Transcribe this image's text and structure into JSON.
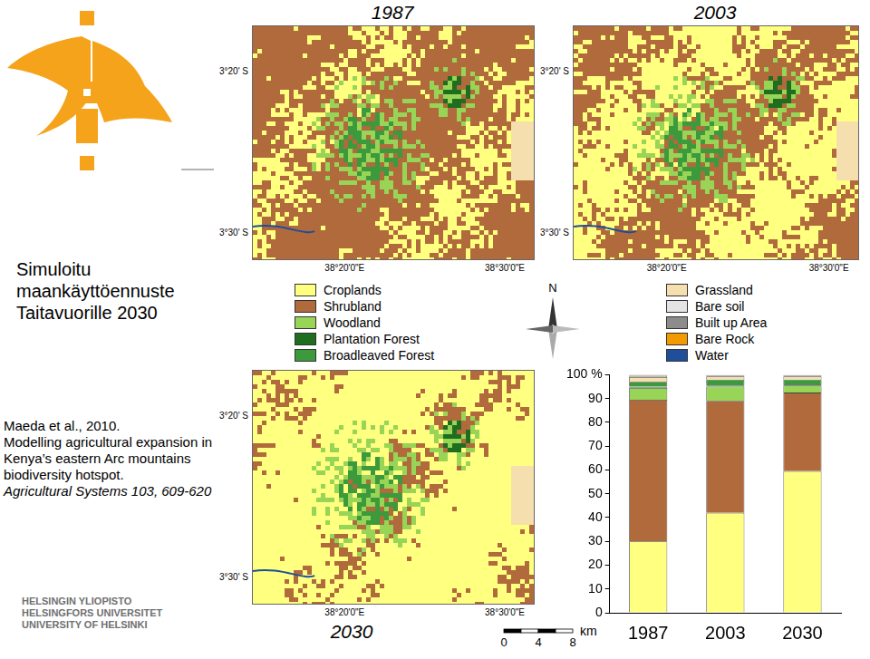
{
  "title": "Simuloitu maankäyttöennuste Taitavuorille 2030",
  "citation": {
    "authors": "Maeda et al., 2010.",
    "article": "Modelling agricultural expansion in Kenya’s eastern Arc mountains biodiversity hotspot.",
    "journal": "Agricultural Systems 103, 609-620"
  },
  "university": [
    "HELSINGIN YLIOPISTO",
    "HELSINGFORS UNIVERSITET",
    "UNIVERSITY OF HELSINKI"
  ],
  "maps": [
    {
      "year": "1987",
      "lat_labels": [
        "3°20' S",
        "3°30' S"
      ],
      "lon_labels": [
        "38°20'0\"E",
        "38°30'0\"E"
      ]
    },
    {
      "year": "2003",
      "lat_labels": [
        "3°20' S",
        "3°30' S"
      ],
      "lon_labels": [
        "38°20'0\"E",
        "38°30'0\"E"
      ]
    },
    {
      "year": "2030",
      "lat_labels": [
        "3°20' S",
        "3°30' S"
      ],
      "lon_labels": [
        "38°20'0\"E",
        "38°30'0\"E"
      ]
    }
  ],
  "compass": "N",
  "scale_bar": {
    "unit": "km",
    "ticks": [
      0,
      4,
      8
    ]
  },
  "chart_data": {
    "type": "bar",
    "stacked": true,
    "grid": false,
    "categories": [
      "1987",
      "2003",
      "2030"
    ],
    "series": [
      {
        "name": "Croplands",
        "color": "#ffff80",
        "values": [
          30,
          42,
          59.5
        ]
      },
      {
        "name": "Shrubland",
        "color": "#b06a3c",
        "values": [
          59.5,
          47,
          33
        ]
      },
      {
        "name": "Woodland",
        "color": "#98d455",
        "values": [
          5,
          6,
          3
        ]
      },
      {
        "name": "Plantation Forest",
        "color": "#1f6e1f",
        "values": [
          0.5,
          0.5,
          0.5
        ]
      },
      {
        "name": "Broadleaved Forest",
        "color": "#3c9a3c",
        "values": [
          2,
          2.5,
          2
        ]
      },
      {
        "name": "Grassland",
        "color": "#f6dfae",
        "values": [
          2,
          1.3,
          1.3
        ]
      },
      {
        "name": "Bare soil",
        "color": "#e4e4e4",
        "values": [
          0.3,
          0.2,
          0.2
        ]
      },
      {
        "name": "Built up Area",
        "color": "#8c8c8c",
        "values": [
          0.3,
          0.3,
          0.3
        ]
      },
      {
        "name": "Bare Rock",
        "color": "#f29a00",
        "values": [
          0.2,
          0.1,
          0.1
        ]
      },
      {
        "name": "Water",
        "color": "#1f4e9a",
        "values": [
          0.2,
          0.1,
          0.1
        ]
      }
    ],
    "ylim": [
      0,
      100
    ],
    "yticks": [
      0,
      10,
      20,
      30,
      40,
      50,
      60,
      70,
      80,
      90,
      {
        "value": 100,
        "label": "100 %"
      }
    ]
  }
}
